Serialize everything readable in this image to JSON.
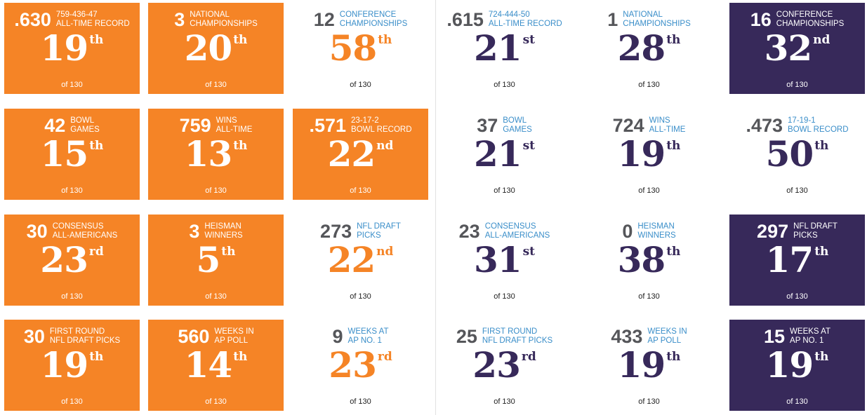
{
  "colors": {
    "orange": "#f58426",
    "purple": "#37295a",
    "label_blue": "#3a8ec9",
    "stat_gray": "#55565a"
  },
  "rows": [
    {
      "cards": [
        {
          "value": ".630",
          "label_line1": "759-436-47",
          "label_line2": "ALL-TIME RECORD",
          "rank": "19",
          "suffix": "th",
          "of_text": "of 130",
          "team": "orange",
          "filled": true
        },
        {
          "value": "3",
          "label_line1": "NATIONAL",
          "label_line2": "CHAMPIONSHIPS",
          "rank": "20",
          "suffix": "th",
          "of_text": "of 130",
          "team": "orange",
          "filled": true
        },
        {
          "value": "12",
          "label_line1": "CONFERENCE",
          "label_line2": "CHAMPIONSHIPS",
          "rank": "58",
          "suffix": "th",
          "of_text": "of 130",
          "team": "orange",
          "filled": false
        },
        {
          "value": ".615",
          "label_line1": "724-444-50",
          "label_line2": "ALL-TIME RECORD",
          "rank": "21",
          "suffix": "st",
          "of_text": "of 130",
          "team": "purple",
          "filled": false
        },
        {
          "value": "1",
          "label_line1": "NATIONAL",
          "label_line2": "CHAMPIONSHIPS",
          "rank": "28",
          "suffix": "th",
          "of_text": "of 130",
          "team": "purple",
          "filled": false
        },
        {
          "value": "16",
          "label_line1": "CONFERENCE",
          "label_line2": "CHAMPIONSHIPS",
          "rank": "32",
          "suffix": "nd",
          "of_text": "of 130",
          "team": "purple",
          "filled": true
        }
      ]
    },
    {
      "cards": [
        {
          "value": "42",
          "label_line1": "BOWL",
          "label_line2": "GAMES",
          "rank": "15",
          "suffix": "th",
          "of_text": "of 130",
          "team": "orange",
          "filled": true
        },
        {
          "value": "759",
          "label_line1": "WINS",
          "label_line2": "ALL-TIME",
          "rank": "13",
          "suffix": "th",
          "of_text": "of 130",
          "team": "orange",
          "filled": true
        },
        {
          "value": ".571",
          "label_line1": "23-17-2",
          "label_line2": "BOWL RECORD",
          "rank": "22",
          "suffix": "nd",
          "of_text": "of 130",
          "team": "orange",
          "filled": true
        },
        {
          "value": "37",
          "label_line1": "BOWL",
          "label_line2": "GAMES",
          "rank": "21",
          "suffix": "st",
          "of_text": "of 130",
          "team": "purple",
          "filled": false
        },
        {
          "value": "724",
          "label_line1": "WINS",
          "label_line2": "ALL-TIME",
          "rank": "19",
          "suffix": "th",
          "of_text": "of 130",
          "team": "purple",
          "filled": false
        },
        {
          "value": ".473",
          "label_line1": "17-19-1",
          "label_line2": "BOWL RECORD",
          "rank": "50",
          "suffix": "th",
          "of_text": "of 130",
          "team": "purple",
          "filled": false
        }
      ]
    },
    {
      "cards": [
        {
          "value": "30",
          "label_line1": "CONSENSUS",
          "label_line2": "ALL-AMERICANS",
          "rank": "23",
          "suffix": "rd",
          "of_text": "of 130",
          "team": "orange",
          "filled": true
        },
        {
          "value": "3",
          "label_line1": "HEISMAN",
          "label_line2": "WINNERS",
          "rank": "5",
          "suffix": "th",
          "of_text": "of 130",
          "team": "orange",
          "filled": true
        },
        {
          "value": "273",
          "label_line1": "NFL DRAFT",
          "label_line2": "PICKS",
          "rank": "22",
          "suffix": "nd",
          "of_text": "of 130",
          "team": "orange",
          "filled": false
        },
        {
          "value": "23",
          "label_line1": "CONSENSUS",
          "label_line2": "ALL-AMERICANS",
          "rank": "31",
          "suffix": "st",
          "of_text": "of 130",
          "team": "purple",
          "filled": false
        },
        {
          "value": "0",
          "label_line1": "HEISMAN",
          "label_line2": "WINNERS",
          "rank": "38",
          "suffix": "th",
          "of_text": "of 130",
          "team": "purple",
          "filled": false
        },
        {
          "value": "297",
          "label_line1": "NFL DRAFT",
          "label_line2": "PICKS",
          "rank": "17",
          "suffix": "th",
          "of_text": "of 130",
          "team": "purple",
          "filled": true
        }
      ]
    },
    {
      "cards": [
        {
          "value": "30",
          "label_line1": "FIRST ROUND",
          "label_line2": "NFL DRAFT PICKS",
          "rank": "19",
          "suffix": "th",
          "of_text": "of 130",
          "team": "orange",
          "filled": true
        },
        {
          "value": "560",
          "label_line1": "WEEKS IN",
          "label_line2": "AP POLL",
          "rank": "14",
          "suffix": "th",
          "of_text": "of 130",
          "team": "orange",
          "filled": true
        },
        {
          "value": "9",
          "label_line1": "WEEKS AT",
          "label_line2": "AP NO. 1",
          "rank": "23",
          "suffix": "rd",
          "of_text": "of 130",
          "team": "orange",
          "filled": false
        },
        {
          "value": "25",
          "label_line1": "FIRST ROUND",
          "label_line2": "NFL DRAFT PICKS",
          "rank": "23",
          "suffix": "rd",
          "of_text": "of 130",
          "team": "purple",
          "filled": false
        },
        {
          "value": "433",
          "label_line1": "WEEKS IN",
          "label_line2": "AP POLL",
          "rank": "19",
          "suffix": "th",
          "of_text": "of 130",
          "team": "purple",
          "filled": false
        },
        {
          "value": "15",
          "label_line1": "WEEKS AT",
          "label_line2": "AP NO. 1",
          "rank": "19",
          "suffix": "th",
          "of_text": "of 130",
          "team": "purple",
          "filled": true
        }
      ]
    }
  ]
}
